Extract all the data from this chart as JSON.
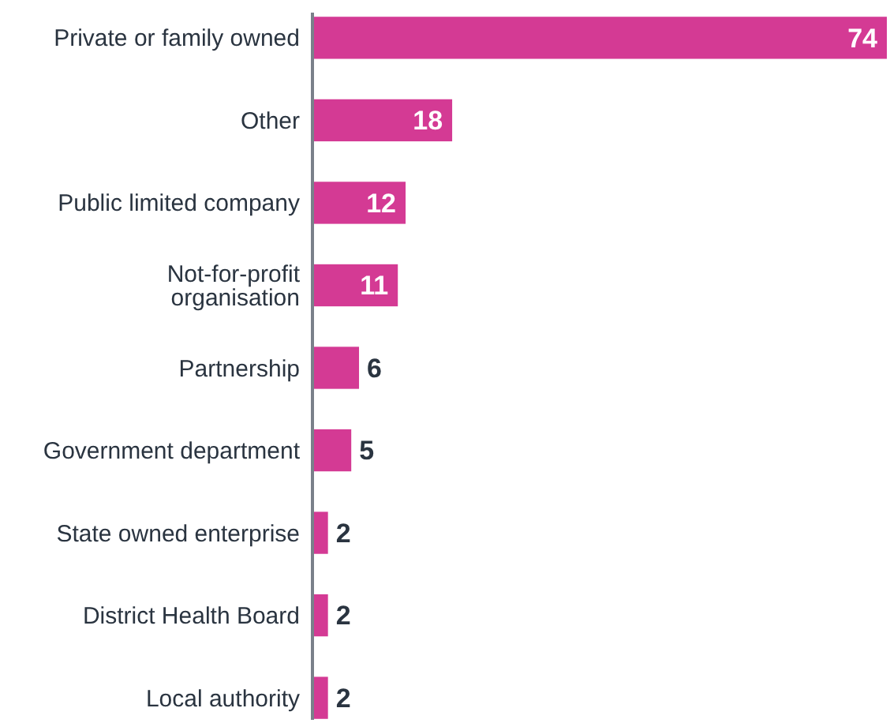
{
  "chart_data": {
    "type": "bar",
    "orientation": "horizontal",
    "categories": [
      "Private or family owned",
      "Other",
      "Public limited company",
      "Not-for-profit organisation",
      "Partnership",
      "Government department",
      "State owned enterprise",
      "District Health Board",
      "Local authority"
    ],
    "values": [
      74,
      18,
      12,
      11,
      6,
      5,
      2,
      2,
      2
    ],
    "color": "#d43a94",
    "data_labels": true
  }
}
